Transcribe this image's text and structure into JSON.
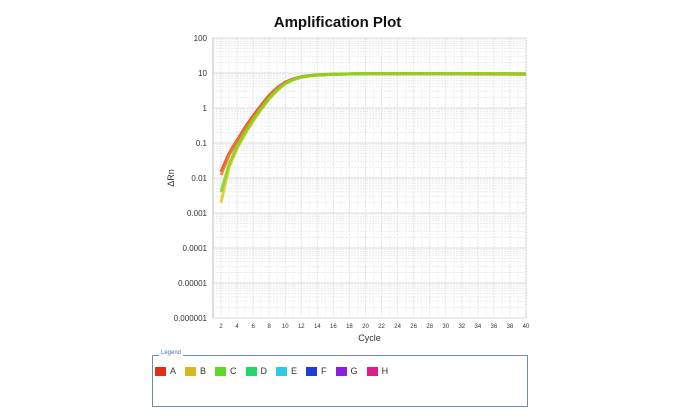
{
  "chart_data": {
    "type": "line",
    "title": "Amplification Plot",
    "xlabel": "Cycle",
    "ylabel": "ΔRn",
    "yscale": "log",
    "ylim": [
      1e-06,
      100
    ],
    "xlim": [
      1,
      40
    ],
    "grid": true,
    "yticks": [
      "100",
      "10",
      "1",
      "0.1",
      "0.01",
      "0.001",
      "0.0001",
      "0.00001",
      "0.000001"
    ],
    "xticks": [
      "2",
      "4",
      "6",
      "8",
      "10",
      "12",
      "14",
      "16",
      "18",
      "20",
      "22",
      "24",
      "26",
      "28",
      "30",
      "32",
      "34",
      "36",
      "38",
      "40"
    ],
    "x": [
      2,
      3,
      4,
      5,
      6,
      7,
      8,
      9,
      10,
      11,
      12,
      13,
      14,
      15,
      16,
      18,
      20,
      25,
      30,
      35,
      40
    ],
    "series": [
      {
        "name": "A",
        "color": "#e0301a",
        "values": [
          0.015,
          0.05,
          0.12,
          0.28,
          0.6,
          1.2,
          2.3,
          3.8,
          5.5,
          6.8,
          7.8,
          8.4,
          8.8,
          9.0,
          9.2,
          9.4,
          9.5,
          9.5,
          9.5,
          9.4,
          9.2
        ]
      },
      {
        "name": "A",
        "color": "#f07a2a",
        "values": [
          0.012,
          0.045,
          0.11,
          0.25,
          0.55,
          1.1,
          2.1,
          3.6,
          5.3,
          6.7,
          7.7,
          8.3,
          8.7,
          9.0,
          9.2,
          9.4,
          9.6,
          9.6,
          9.6,
          9.5,
          9.4
        ]
      },
      {
        "name": "B",
        "color": "#e2c81a",
        "values": [
          0.002,
          0.02,
          0.07,
          0.18,
          0.42,
          0.9,
          1.8,
          3.2,
          4.9,
          6.4,
          7.5,
          8.2,
          8.7,
          9.0,
          9.2,
          9.4,
          9.6,
          9.6,
          9.6,
          9.6,
          9.5
        ]
      },
      {
        "name": "C",
        "color": "#7ed321",
        "values": [
          0.004,
          0.025,
          0.08,
          0.2,
          0.46,
          0.95,
          1.9,
          3.3,
          5.0,
          6.5,
          7.6,
          8.3,
          8.8,
          9.1,
          9.3,
          9.5,
          9.7,
          9.7,
          9.7,
          9.7,
          9.6
        ]
      }
    ],
    "legend": {
      "title": "Legend",
      "placement": "bottom",
      "entries": [
        {
          "label": "A",
          "color": "#e0301a"
        },
        {
          "label": "B",
          "color": "#d6b81c"
        },
        {
          "label": "C",
          "color": "#5ed62a"
        },
        {
          "label": "D",
          "color": "#22d66a"
        },
        {
          "label": "E",
          "color": "#2ccbe6"
        },
        {
          "label": "F",
          "color": "#1c3ed6"
        },
        {
          "label": "G",
          "color": "#8c1ee0"
        },
        {
          "label": "H",
          "color": "#e01c8c"
        }
      ]
    }
  }
}
